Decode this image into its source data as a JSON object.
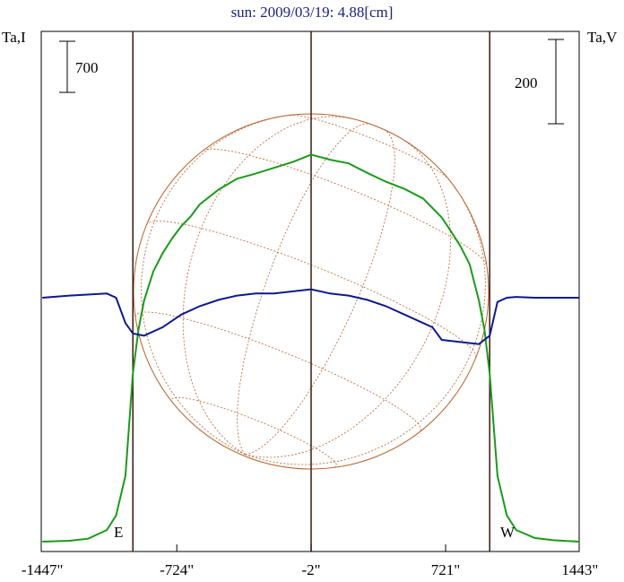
{
  "chart_data": {
    "type": "line",
    "title": "sun: 2009/03/19: 4.88[cm]",
    "left_axis_label": "Ta,I",
    "right_axis_label": "Ta,V",
    "scale_bar_left": "700",
    "scale_bar_right": "200",
    "marker_east": "E",
    "marker_west": "W",
    "x_ticks": [
      {
        "value": -1447,
        "label": "-1447\""
      },
      {
        "value": -724,
        "label": "-724\""
      },
      {
        "value": -2,
        "label": "-2\""
      },
      {
        "value": 721,
        "label": "721\""
      },
      {
        "value": 1443,
        "label": "1443\""
      }
    ],
    "xlim": [
      -1447,
      1443
    ],
    "vertical_lines": [
      -960,
      -2,
      958
    ],
    "solar_disk": {
      "center": -2,
      "radius": 959
    },
    "series": [
      {
        "color": "#1a9a1a",
        "axis": "left",
        "x": [
          -1447,
          -1300,
          -1200,
          -1100,
          -1050,
          -1000,
          -960,
          -930,
          -900,
          -850,
          -800,
          -750,
          -700,
          -650,
          -600,
          -500,
          -400,
          -300,
          -200,
          -100,
          -2,
          100,
          200,
          300,
          400,
          500,
          600,
          700,
          750,
          800,
          850,
          900,
          930,
          958,
          1000,
          1050,
          1100,
          1200,
          1300,
          1443
        ],
        "y": [
          0,
          12,
          40,
          160,
          360,
          900,
          2300,
          2900,
          3300,
          3700,
          3950,
          4150,
          4320,
          4450,
          4620,
          4820,
          4970,
          5040,
          5120,
          5200,
          5300,
          5230,
          5180,
          5050,
          4930,
          4830,
          4700,
          4440,
          4250,
          4050,
          3800,
          3300,
          2900,
          2300,
          900,
          360,
          160,
          50,
          20,
          0
        ]
      },
      {
        "color": "#0d1a8c",
        "axis": "right",
        "x": [
          -1447,
          -1300,
          -1100,
          -1050,
          -1000,
          -960,
          -900,
          -800,
          -700,
          -600,
          -500,
          -400,
          -300,
          -200,
          -100,
          -2,
          100,
          200,
          300,
          400,
          500,
          600,
          650,
          700,
          800,
          900,
          958,
          1000,
          1050,
          1100,
          1200,
          1300,
          1443
        ],
        "y": [
          0,
          5,
          10,
          0,
          -60,
          -85,
          -90,
          -70,
          -40,
          -20,
          -5,
          5,
          10,
          10,
          15,
          20,
          10,
          5,
          -5,
          -20,
          -40,
          -60,
          -70,
          -100,
          -105,
          -110,
          -90,
          -10,
          0,
          2,
          0,
          0,
          0
        ]
      }
    ]
  }
}
